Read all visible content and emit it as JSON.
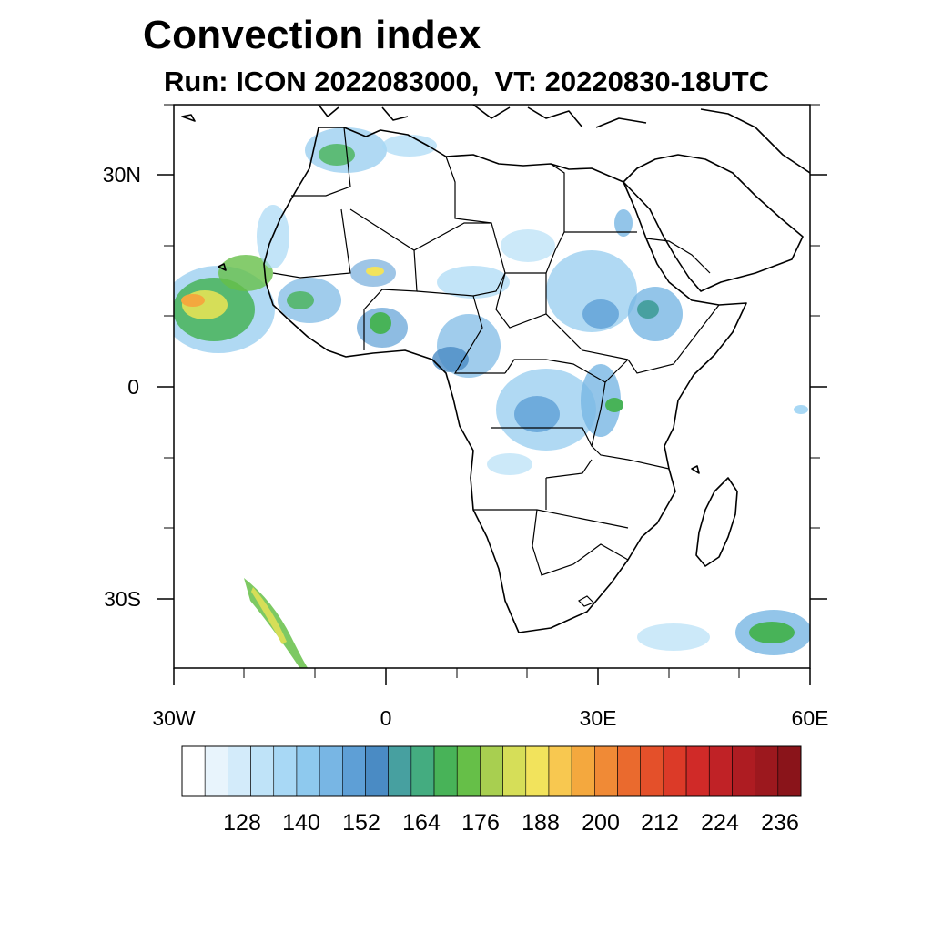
{
  "title": "Convection index",
  "subtitle": "Run: ICON 2022083000,  VT: 20220830-18UTC",
  "map": {
    "lon_range": [
      -30,
      60
    ],
    "lat_range": [
      -40,
      40
    ],
    "lat_ticks": [
      {
        "value": 30,
        "label": "30N"
      },
      {
        "value": 0,
        "label": "0"
      },
      {
        "value": -30,
        "label": "30S"
      }
    ],
    "lon_ticks": [
      {
        "value": -30,
        "label": "30W"
      },
      {
        "value": 0,
        "label": "0"
      },
      {
        "value": 30,
        "label": "30E"
      },
      {
        "value": 60,
        "label": "60E"
      }
    ]
  },
  "colorbar": {
    "labels": [
      "128",
      "140",
      "152",
      "164",
      "176",
      "188",
      "200",
      "212",
      "224",
      "236"
    ],
    "colors": [
      "#ffffff",
      "#e8f4fc",
      "#d3ebfa",
      "#bfe3f8",
      "#a8d8f5",
      "#8ec9ee",
      "#78b6e4",
      "#5e9fd6",
      "#4a8bc4",
      "#47a0a0",
      "#44ac80",
      "#48b358",
      "#66bf48",
      "#a8cf50",
      "#d6de58",
      "#f2e35c",
      "#f8c850",
      "#f4a83e",
      "#f08a36",
      "#ea6a2e",
      "#e4502a",
      "#dc3a28",
      "#d02a28",
      "#c02226",
      "#ae1c22",
      "#9c181e",
      "#8a141a"
    ]
  }
}
